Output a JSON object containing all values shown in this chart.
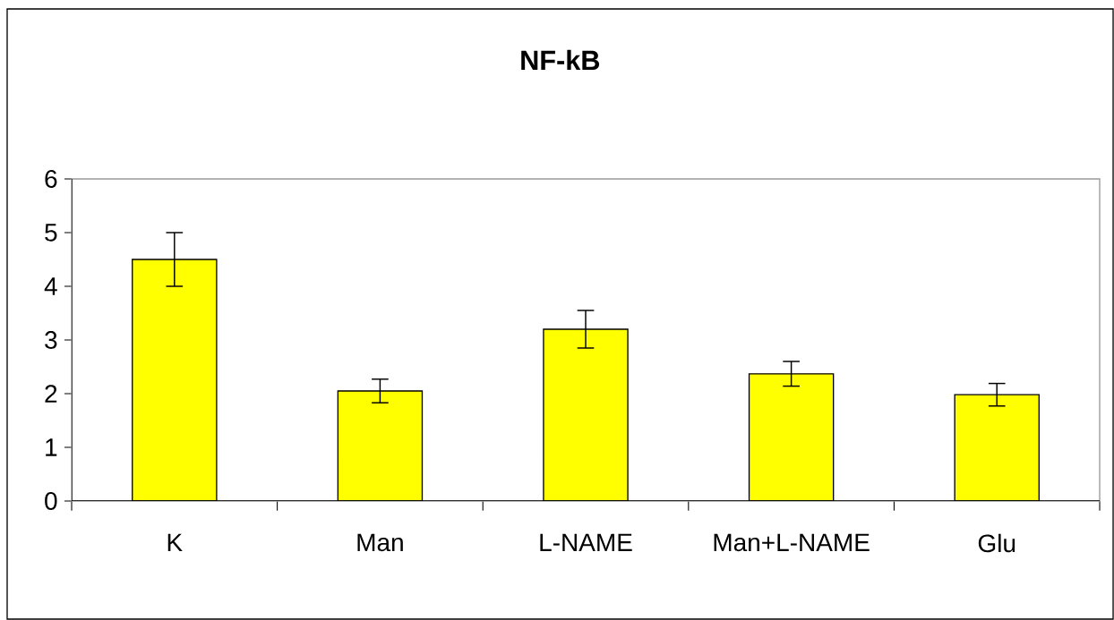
{
  "chart_data": {
    "type": "bar",
    "title": "NF-kB",
    "categories": [
      "K",
      "Man",
      "L-NAME",
      "Man+L-NAME",
      "Glu"
    ],
    "values": [
      4.5,
      2.05,
      3.2,
      2.37,
      1.98
    ],
    "errors": [
      0.5,
      0.22,
      0.35,
      0.23,
      0.21
    ],
    "color": "#ffff00",
    "ylim": [
      0,
      6
    ],
    "yticks": [
      0,
      1,
      2,
      3,
      4,
      5,
      6
    ]
  }
}
